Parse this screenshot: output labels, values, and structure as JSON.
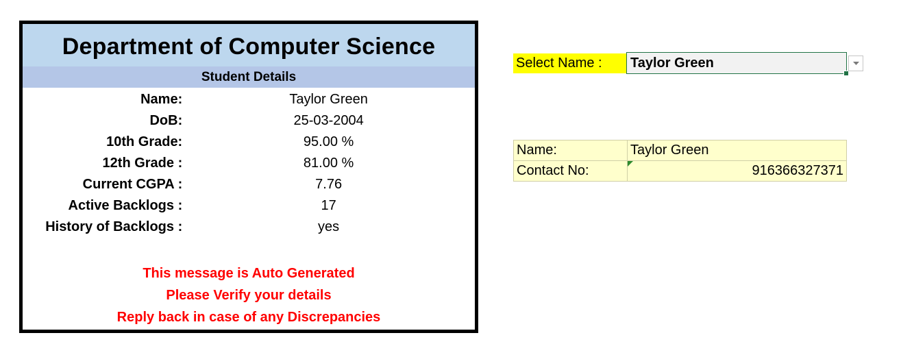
{
  "card": {
    "title": "Department of Computer Science",
    "subtitle": "Student Details",
    "fields": [
      {
        "label": "Name:",
        "value": "Taylor Green"
      },
      {
        "label": "DoB:",
        "value": "25-03-2004"
      },
      {
        "label": "10th Grade:",
        "value": "95.00 %"
      },
      {
        "label": "12th Grade :",
        "value": "81.00 %"
      },
      {
        "label": "Current CGPA :",
        "value": "7.76"
      },
      {
        "label": "Active Backlogs :",
        "value": "17"
      },
      {
        "label": "History of Backlogs :",
        "value": "yes"
      }
    ],
    "messages": [
      "This message is Auto Generated",
      "Please Verify your details",
      "Reply back in case of any Discrepancies"
    ],
    "colors": {
      "title_bg": "#bdd7ee",
      "subtitle_bg": "#b4c6e7",
      "message_text": "#ff0000"
    }
  },
  "selector": {
    "label": "Select Name :",
    "selected_value": "Taylor Green",
    "dropdown_icon": "chevron-down-icon",
    "colors": {
      "label_bg": "#ffff00",
      "active_border": "#217346"
    }
  },
  "lookup": {
    "rows": [
      {
        "key": "Name:",
        "value": "Taylor Green"
      },
      {
        "key": "Contact  No:",
        "value": "916366327371"
      }
    ],
    "colors": {
      "bg": "#ffffcc",
      "error_marker": "#2e8b2e"
    }
  }
}
